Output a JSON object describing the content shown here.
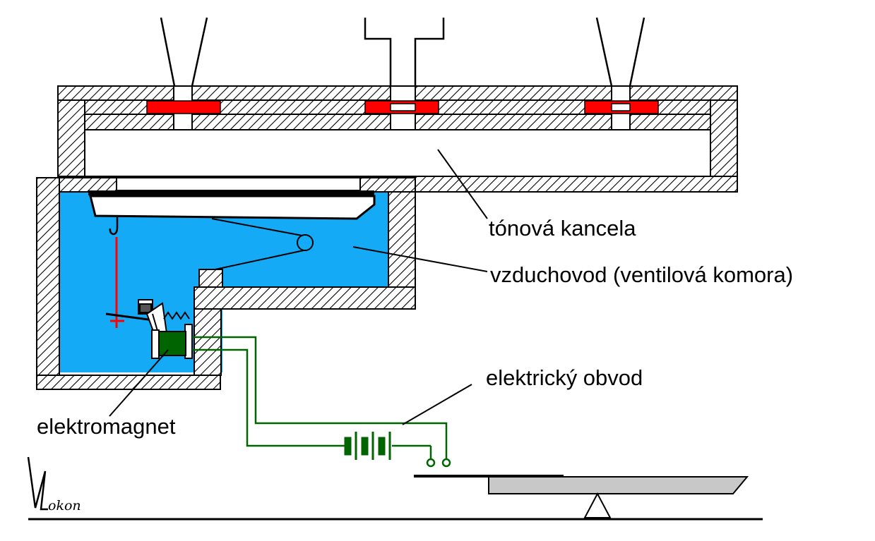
{
  "labels": {
    "tone_channel": "tónová kancela",
    "air_duct": "vzduchovod (ventilová komora)",
    "circuit": "elektrický obvod",
    "electromagnet": "elektromagnet"
  },
  "signature": "Kokon",
  "colors": {
    "air": "#14aaf5",
    "pallet": "#ff0000",
    "wire": "#006400",
    "coil": "#006400",
    "key": "#c8c8c8",
    "hatch": "#000000"
  }
}
